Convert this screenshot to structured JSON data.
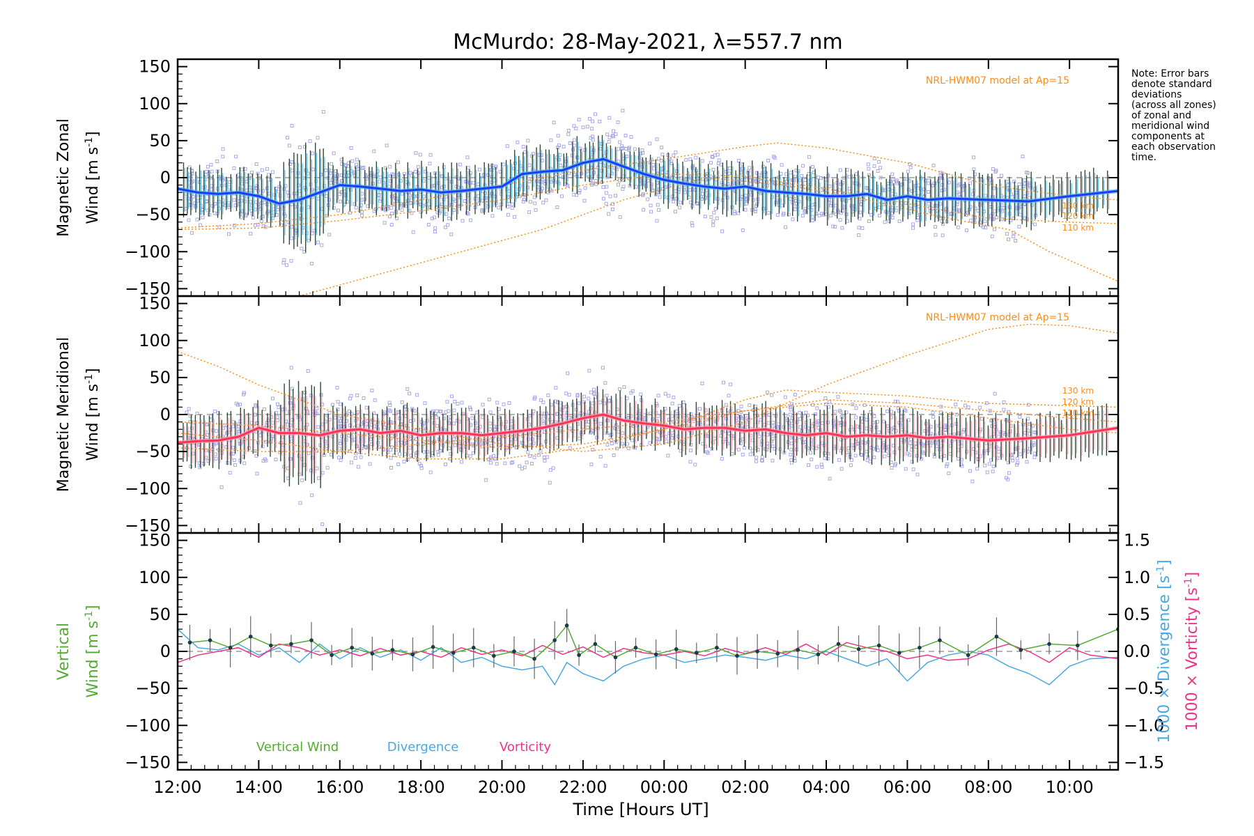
{
  "chart_data": {
    "type": "line",
    "title": "McMurdo: 28-May-2021, λ=557.7 nm",
    "xlabel": "Time [Hours UT]",
    "x_ticks": [
      "12:00",
      "14:00",
      "16:00",
      "18:00",
      "20:00",
      "22:00",
      "00:00",
      "02:00",
      "04:00",
      "06:00",
      "08:00",
      "10:00"
    ],
    "x_tick_hours": [
      12,
      14,
      16,
      18,
      20,
      22,
      24,
      26,
      28,
      30,
      32,
      34
    ],
    "xlim": [
      12,
      35.2
    ],
    "note": [
      "Note: Error bars",
      "denote standard",
      "deviations",
      "(across all zones)",
      "of zonal and",
      "meridional wind",
      "components at",
      "each observation",
      "time."
    ],
    "colors": {
      "zonal": "#1a3cff",
      "zonal_light": "#4fb5e8",
      "meridional": "#ff3355",
      "meridional_light": "#ffa0b4",
      "scatter": "#a8a8e0",
      "model": "#ff8c1a",
      "errbar": "#2e4a3a",
      "vertical": "#55aa33",
      "divergence": "#4aa8e0",
      "vorticity": "#ee3388"
    },
    "panels": [
      {
        "name": "zonal",
        "ylabel_line1": "Magnetic Zonal",
        "ylabel_line2": "Wind [m s",
        "ylabel_sup": "-1",
        "ylabel_close": "]",
        "ylim": [
          -160,
          160
        ],
        "y_ticks": [
          -150,
          -100,
          -50,
          0,
          50,
          100,
          150
        ],
        "model_label": "NRL-HWM07 model at Ap=15",
        "model_alt_labels": [
          "130 km",
          "120 km",
          "110 km"
        ],
        "model_alt_values": [
          -37,
          -51,
          -67
        ],
        "series": [
          {
            "name": "Zonal wind",
            "x": [
              12,
              12.5,
              13,
              13.5,
              14,
              14.5,
              15,
              15.5,
              16,
              16.5,
              17,
              17.5,
              18,
              18.5,
              19,
              19.5,
              20,
              20.5,
              21,
              21.5,
              22,
              22.5,
              23,
              23.5,
              24,
              24.5,
              25,
              25.5,
              26,
              26.5,
              27,
              27.5,
              28,
              28.5,
              29,
              29.5,
              30,
              30.5,
              31,
              32,
              33,
              34,
              35.2
            ],
            "y": [
              -15,
              -20,
              -22,
              -20,
              -25,
              -35,
              -30,
              -20,
              -10,
              -12,
              -15,
              -18,
              -16,
              -20,
              -18,
              -15,
              -12,
              5,
              8,
              10,
              20,
              25,
              15,
              5,
              -3,
              -8,
              -12,
              -15,
              -12,
              -18,
              -20,
              -22,
              -25,
              -25,
              -22,
              -30,
              -25,
              -30,
              -28,
              -30,
              -32,
              -25,
              -18
            ]
          },
          {
            "name": "HWM07 130 km",
            "x": [
              12,
              14,
              16,
              18,
              20,
              22,
              24,
              26,
              26.8,
              28,
              30,
              32,
              34,
              35.2
            ],
            "y": [
              -68,
              -62,
              -50,
              -30,
              -10,
              10,
              25,
              42,
              47,
              40,
              20,
              -10,
              -25,
              -30
            ]
          },
          {
            "name": "HWM07 120 km",
            "x": [
              12,
              14,
              16,
              18,
              20,
              22,
              24,
              26,
              28,
              30,
              32,
              34,
              35.2
            ],
            "y": [
              -70,
              -68,
              -58,
              -45,
              -30,
              -10,
              5,
              2,
              -15,
              -35,
              -55,
              -60,
              -62
            ]
          },
          {
            "name": "HWM07 110 km",
            "x": [
              15,
              17,
              19,
              21,
              23,
              25,
              27,
              29,
              31,
              32.5,
              33.5,
              35.2
            ],
            "y": [
              -160,
              -130,
              -100,
              -70,
              -30,
              0,
              -10,
              -30,
              -55,
              -70,
              -100,
              -140
            ]
          }
        ]
      },
      {
        "name": "meridional",
        "ylabel_line1": "Magnetic Meridional",
        "ylabel_line2": "Wind [m s",
        "ylabel_sup": "-1",
        "ylabel_close": "]",
        "ylim": [
          -160,
          160
        ],
        "y_ticks": [
          -150,
          -100,
          -50,
          0,
          50,
          100,
          150
        ],
        "model_label": "NRL-HWM07 model at Ap=15",
        "model_alt_labels": [
          "130 km",
          "120 km",
          "110 km"
        ],
        "model_alt_values": [
          33,
          18,
          3
        ],
        "series": [
          {
            "name": "Meridional wind",
            "x": [
              12,
              12.5,
              13,
              13.5,
              14,
              14.5,
              15,
              15.5,
              16,
              16.5,
              17,
              17.5,
              18,
              18.5,
              19,
              19.5,
              20,
              20.5,
              21,
              21.5,
              22,
              22.5,
              23,
              23.5,
              24,
              24.5,
              25,
              25.5,
              26,
              26.5,
              27,
              27.5,
              28,
              28.5,
              29,
              29.5,
              30,
              30.5,
              31,
              32,
              33,
              34,
              35.2
            ],
            "y": [
              -38,
              -36,
              -35,
              -30,
              -18,
              -25,
              -25,
              -28,
              -22,
              -20,
              -25,
              -22,
              -28,
              -25,
              -25,
              -28,
              -25,
              -22,
              -18,
              -12,
              -5,
              0,
              -8,
              -12,
              -15,
              -20,
              -18,
              -18,
              -22,
              -20,
              -25,
              -28,
              -25,
              -30,
              -28,
              -30,
              -28,
              -32,
              -30,
              -35,
              -32,
              -28,
              -18
            ]
          },
          {
            "name": "HWM07 model A",
            "x": [
              12,
              13,
              14,
              15,
              16,
              18,
              20,
              22,
              24,
              26,
              28,
              30,
              32,
              33,
              34,
              35.2
            ],
            "y": [
              85,
              65,
              40,
              20,
              0,
              -20,
              -40,
              -50,
              -40,
              -10,
              40,
              80,
              115,
              122,
              120,
              110
            ]
          },
          {
            "name": "HWM07 model B",
            "x": [
              12,
              14,
              16,
              18,
              20,
              22,
              24,
              26,
              28,
              30,
              32,
              34,
              35.2
            ],
            "y": [
              -10,
              -15,
              -25,
              -35,
              -45,
              -40,
              -20,
              5,
              15,
              10,
              -5,
              -20,
              -25
            ]
          },
          {
            "name": "HWM07 model C",
            "x": [
              12,
              14,
              16,
              18,
              20,
              22,
              24,
              26,
              27,
              28,
              30,
              32,
              34,
              35.2
            ],
            "y": [
              -25,
              -35,
              -50,
              -60,
              -60,
              -45,
              -20,
              20,
              33,
              30,
              25,
              15,
              12,
              10
            ]
          },
          {
            "name": "HWM07 model D",
            "x": [
              12,
              14,
              16,
              18,
              20,
              22,
              24,
              26,
              28,
              30,
              32,
              34,
              35.2
            ],
            "y": [
              -45,
              -50,
              -50,
              -40,
              -30,
              -20,
              -10,
              5,
              20,
              15,
              5,
              -5,
              -10
            ]
          }
        ]
      },
      {
        "name": "vertical",
        "ylabel_line1": "Vertical",
        "ylabel_line2": "Wind [m s",
        "ylabel_sup": "-1",
        "ylabel_close": "]",
        "ylim": [
          -160,
          160
        ],
        "y_ticks": [
          -150,
          -100,
          -50,
          0,
          50,
          100,
          150
        ],
        "y2lim": [
          -1.6,
          1.6
        ],
        "y2_ticks": [
          -1.5,
          -1.0,
          -0.5,
          0.0,
          0.5,
          1.0,
          1.5
        ],
        "y2_tick_labels": [
          "−1.5",
          "−1.0",
          "−0.5",
          "0.0",
          "0.5",
          "1.0",
          "1.5"
        ],
        "y2label_div": "1000 × Divergence [s",
        "y2label_vort": "1000 × Vorticity [s",
        "y2label_sup": "-1",
        "y2label_close": "]",
        "legend": [
          "Vertical Wind",
          "Divergence",
          "Vorticity"
        ],
        "series": [
          {
            "name": "Vertical Wind",
            "x": [
              12.3,
              12.8,
              13.3,
              13.8,
              14.3,
              14.8,
              15.3,
              15.8,
              16.3,
              16.8,
              17.3,
              17.8,
              18.3,
              18.8,
              19.3,
              19.8,
              20.3,
              20.8,
              21.3,
              21.6,
              21.9,
              22.3,
              22.8,
              23.3,
              23.8,
              24.3,
              24.8,
              25.3,
              25.8,
              26.3,
              26.8,
              27.3,
              27.8,
              28.3,
              28.8,
              29.3,
              29.8,
              30.3,
              30.8,
              31.5,
              32.2,
              32.8,
              33.5,
              34.2,
              35.2
            ],
            "y": [
              12,
              15,
              5,
              20,
              8,
              10,
              15,
              -5,
              5,
              -3,
              2,
              -4,
              6,
              -2,
              5,
              -6,
              0,
              -10,
              15,
              35,
              -5,
              10,
              -8,
              5,
              -4,
              3,
              -2,
              5,
              -6,
              0,
              -3,
              2,
              -4,
              10,
              3,
              8,
              -2,
              5,
              15,
              -5,
              20,
              2,
              10,
              8,
              30
            ]
          },
          {
            "name": "Divergence",
            "x": [
              12,
              12.5,
              13,
              13.5,
              14,
              14.5,
              15,
              15.5,
              16,
              16.5,
              17,
              17.5,
              18,
              18.5,
              19,
              19.5,
              20,
              20.5,
              21,
              21.3,
              21.6,
              22,
              22.5,
              23,
              23.5,
              24,
              24.5,
              25,
              25.5,
              26,
              26.5,
              27,
              27.5,
              28,
              28.5,
              29,
              29.5,
              30,
              30.5,
              31,
              31.5,
              32,
              32.5,
              33,
              33.5,
              34,
              34.5,
              35.2
            ],
            "y": [
              30,
              5,
              2,
              10,
              -5,
              5,
              -15,
              10,
              -10,
              5,
              -8,
              2,
              -12,
              5,
              -15,
              -8,
              -20,
              -25,
              -20,
              -45,
              -15,
              -30,
              -40,
              -20,
              -10,
              -5,
              -15,
              -10,
              -5,
              -8,
              -12,
              -5,
              -10,
              0,
              -10,
              -20,
              -10,
              -40,
              -15,
              -5,
              0,
              -5,
              -20,
              -30,
              -45,
              -20,
              -10,
              -8
            ]
          },
          {
            "name": "Vorticity",
            "x": [
              12,
              12.5,
              13,
              13.5,
              14,
              14.5,
              15,
              15.5,
              16,
              16.5,
              17,
              17.5,
              18,
              18.5,
              19,
              19.5,
              20,
              20.5,
              21,
              21.5,
              22,
              22.5,
              23,
              23.5,
              24,
              24.5,
              25,
              25.5,
              26,
              26.5,
              27,
              27.5,
              28,
              28.5,
              29,
              29.5,
              30,
              30.5,
              31,
              31.5,
              32,
              32.5,
              33,
              33.5,
              34,
              34.5,
              35.2
            ],
            "y": [
              -15,
              -5,
              0,
              5,
              -8,
              10,
              5,
              -5,
              2,
              -6,
              4,
              -5,
              0,
              -8,
              5,
              -4,
              2,
              -6,
              8,
              -4,
              6,
              -8,
              4,
              -2,
              -5,
              0,
              -6,
              4,
              -3,
              5,
              -4,
              10,
              -5,
              12,
              5,
              0,
              -10,
              -5,
              -12,
              -10,
              2,
              10,
              0,
              -15,
              5,
              -5,
              -10
            ]
          }
        ]
      }
    ]
  }
}
